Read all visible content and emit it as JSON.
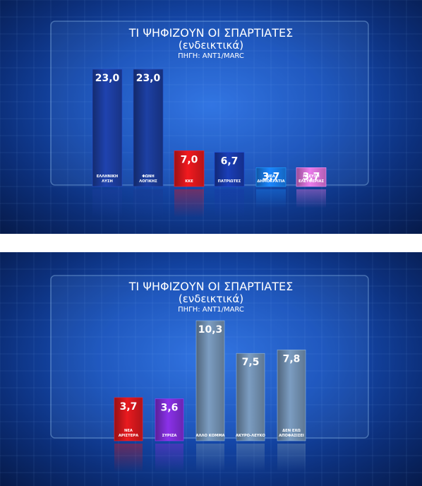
{
  "chart_data": [
    {
      "type": "bar",
      "title": "ΤΙ ΨΗΦΙΖΟΥΝ ΟΙ ΣΠΑΡΤΙΑΤΕΣ",
      "subtitle": "(ενδεικτικά)",
      "source": "ΠΗΓΗ: ANT1/MARC",
      "categories": [
        "ΕΛΛΗΝΙΚΗ ΛΥΣΗ",
        "ΦΩΝΗ ΛΟΓΙΚΗΣ",
        "ΚΚΕ",
        "ΠΑΤΡΙΩΤΕΣ",
        "ΝΕΑ ΔΗΜΟΚΡΑΤΙΑ",
        "ΠΛΕΥΣΗ ΕΛΕΥΘΕΡΙΑΣ"
      ],
      "values": [
        23.0,
        23.0,
        7.0,
        6.7,
        3.7,
        3.7
      ],
      "value_labels": [
        "23,0",
        "23,0",
        "7,0",
        "6,7",
        "3,7",
        "3,7"
      ],
      "colors": [
        "#1c3c9c",
        "#1a3992",
        "#d8171c",
        "#1737a4",
        "#1778e4",
        "#d26ed2"
      ],
      "ylim": [
        0,
        23
      ]
    },
    {
      "type": "bar",
      "title": "ΤΙ ΨΗΦΙΖΟΥΝ ΟΙ ΣΠΑΡΤΙΑΤΕΣ",
      "subtitle": "(ενδεικτικά)",
      "source": "ΠΗΓΗ: ANT1/MARC",
      "categories": [
        "ΝΕΑ ΑΡΙΣΤΕΡΑ",
        "ΣΥΡΙΖΑ",
        "ΑΛΛΟ ΚΟΜΜΑ",
        "ΑΚΥΡΟ-ΛΕΥΚΟ",
        "ΔΕΝ ΕΧΩ ΑΠΟΦΑΣΙΣΕΙ"
      ],
      "values": [
        3.7,
        3.6,
        10.3,
        7.5,
        7.8
      ],
      "value_labels": [
        "3,7",
        "3,6",
        "10,3",
        "7,5",
        "7,8"
      ],
      "colors": [
        "#d0171c",
        "#7c2cd0",
        "#6f8cac",
        "#6f8cac",
        "#6f8cac"
      ],
      "ylim": [
        0,
        10.3
      ]
    }
  ]
}
